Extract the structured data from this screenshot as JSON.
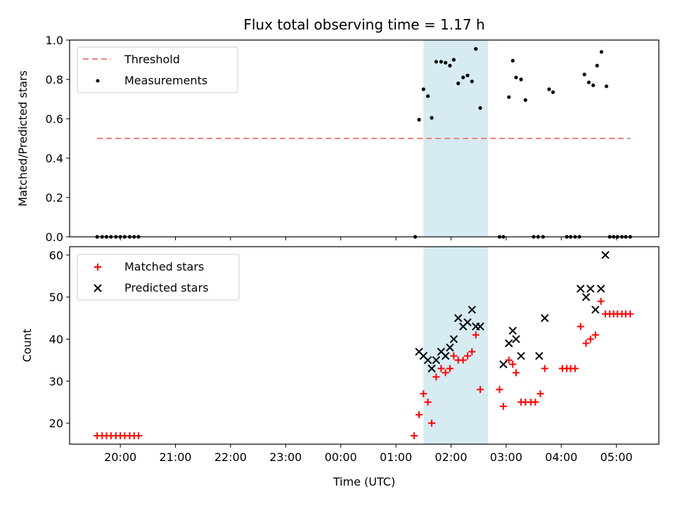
{
  "chart_data": [
    {
      "type": "scatter",
      "title": "Flux total observing time = 1.17 h",
      "xlabel": "",
      "ylabel": "Matched/Predicted stars",
      "ylim": [
        0,
        1.0
      ],
      "yticks": [
        "0.0",
        "0.2",
        "0.4",
        "0.6",
        "0.8",
        "1.0"
      ],
      "x_axis": "hours since 20:00 UTC",
      "xlim": [
        -0.92,
        9.77
      ],
      "highlight_span": [
        5.5,
        6.67
      ],
      "legend": {
        "placement": "upper-left",
        "entries": [
          "Threshold",
          "Measurements"
        ]
      },
      "threshold": {
        "name": "Threshold",
        "value": 0.5,
        "x_range": [
          -0.42,
          9.25
        ],
        "color": "#f08080"
      },
      "series": [
        {
          "name": "Measurements",
          "color": "#000000",
          "points": [
            [
              -0.42,
              0
            ],
            [
              -0.33,
              0
            ],
            [
              -0.25,
              0
            ],
            [
              -0.17,
              0
            ],
            [
              -0.08,
              0
            ],
            [
              0.0,
              0
            ],
            [
              0.08,
              0
            ],
            [
              0.17,
              0
            ],
            [
              0.25,
              0
            ],
            [
              0.33,
              0
            ],
            [
              5.35,
              0
            ],
            [
              5.42,
              0.595
            ],
            [
              5.5,
              0.75
            ],
            [
              5.58,
              0.715
            ],
            [
              5.65,
              0.605
            ],
            [
              5.73,
              0.89
            ],
            [
              5.82,
              0.89
            ],
            [
              5.9,
              0.885
            ],
            [
              5.98,
              0.87
            ],
            [
              6.05,
              0.9
            ],
            [
              6.13,
              0.78
            ],
            [
              6.22,
              0.81
            ],
            [
              6.3,
              0.82
            ],
            [
              6.38,
              0.79
            ],
            [
              6.45,
              0.955
            ],
            [
              6.53,
              0.655
            ],
            [
              6.88,
              0
            ],
            [
              6.95,
              0
            ],
            [
              7.05,
              0.71
            ],
            [
              7.12,
              0.895
            ],
            [
              7.18,
              0.81
            ],
            [
              7.27,
              0.8
            ],
            [
              7.35,
              0.695
            ],
            [
              7.5,
              0
            ],
            [
              7.58,
              0
            ],
            [
              7.67,
              0
            ],
            [
              7.78,
              0.75
            ],
            [
              7.85,
              0.735
            ],
            [
              8.1,
              0
            ],
            [
              8.17,
              0
            ],
            [
              8.25,
              0
            ],
            [
              8.33,
              0
            ],
            [
              8.42,
              0.825
            ],
            [
              8.5,
              0.785
            ],
            [
              8.58,
              0.77
            ],
            [
              8.65,
              0.87
            ],
            [
              8.73,
              0.94
            ],
            [
              8.82,
              0.765
            ],
            [
              8.88,
              0
            ],
            [
              8.95,
              0
            ],
            [
              9.02,
              0
            ],
            [
              9.1,
              0
            ],
            [
              9.17,
              0
            ],
            [
              9.25,
              0
            ]
          ]
        }
      ]
    },
    {
      "type": "scatter",
      "title": "",
      "xlabel": "Time (UTC)",
      "ylabel": "Count",
      "ylim": [
        15,
        62
      ],
      "yticks": [
        "20",
        "30",
        "40",
        "50",
        "60"
      ],
      "x_axis": "hours since 20:00 UTC",
      "xlim": [
        -0.92,
        9.77
      ],
      "xtick_labels": [
        "20:00",
        "21:00",
        "22:00",
        "23:00",
        "00:00",
        "01:00",
        "02:00",
        "03:00",
        "04:00",
        "05:00"
      ],
      "highlight_span": [
        5.5,
        6.67
      ],
      "legend": {
        "placement": "upper-left",
        "entries": [
          "Matched stars",
          "Predicted stars"
        ]
      },
      "series": [
        {
          "name": "Matched stars",
          "marker": "plus",
          "color": "#ff0000",
          "points": [
            [
              -0.42,
              17
            ],
            [
              -0.33,
              17
            ],
            [
              -0.25,
              17
            ],
            [
              -0.17,
              17
            ],
            [
              -0.08,
              17
            ],
            [
              0.0,
              17
            ],
            [
              0.08,
              17
            ],
            [
              0.17,
              17
            ],
            [
              0.25,
              17
            ],
            [
              0.33,
              17
            ],
            [
              5.33,
              17
            ],
            [
              5.42,
              22
            ],
            [
              5.5,
              27
            ],
            [
              5.58,
              25
            ],
            [
              5.65,
              20
            ],
            [
              5.73,
              31
            ],
            [
              5.82,
              33
            ],
            [
              5.9,
              32
            ],
            [
              5.98,
              33
            ],
            [
              6.05,
              36
            ],
            [
              6.13,
              35
            ],
            [
              6.22,
              35
            ],
            [
              6.3,
              36
            ],
            [
              6.38,
              37
            ],
            [
              6.45,
              41
            ],
            [
              6.53,
              28
            ],
            [
              6.88,
              28
            ],
            [
              6.95,
              24
            ],
            [
              7.05,
              35
            ],
            [
              7.12,
              34
            ],
            [
              7.18,
              32
            ],
            [
              7.27,
              25
            ],
            [
              7.35,
              25
            ],
            [
              7.45,
              25
            ],
            [
              7.53,
              25
            ],
            [
              7.62,
              27
            ],
            [
              7.7,
              33
            ],
            [
              8.02,
              33
            ],
            [
              8.1,
              33
            ],
            [
              8.17,
              33
            ],
            [
              8.25,
              33
            ],
            [
              8.35,
              43
            ],
            [
              8.45,
              39
            ],
            [
              8.53,
              40
            ],
            [
              8.62,
              41
            ],
            [
              8.72,
              49
            ],
            [
              8.8,
              46
            ],
            [
              8.88,
              46
            ],
            [
              8.95,
              46
            ],
            [
              9.02,
              46
            ],
            [
              9.1,
              46
            ],
            [
              9.17,
              46
            ],
            [
              9.25,
              46
            ]
          ]
        },
        {
          "name": "Predicted stars",
          "marker": "x",
          "color": "#000000",
          "points": [
            [
              5.42,
              37
            ],
            [
              5.5,
              36
            ],
            [
              5.58,
              35
            ],
            [
              5.65,
              33
            ],
            [
              5.73,
              35
            ],
            [
              5.82,
              37
            ],
            [
              5.9,
              36
            ],
            [
              5.98,
              38
            ],
            [
              6.05,
              40
            ],
            [
              6.13,
              45
            ],
            [
              6.22,
              43
            ],
            [
              6.3,
              44
            ],
            [
              6.38,
              47
            ],
            [
              6.45,
              43
            ],
            [
              6.53,
              43
            ],
            [
              6.95,
              34
            ],
            [
              7.05,
              39
            ],
            [
              7.12,
              42
            ],
            [
              7.18,
              40
            ],
            [
              7.27,
              36
            ],
            [
              7.6,
              36
            ],
            [
              7.7,
              45
            ],
            [
              8.35,
              52
            ],
            [
              8.45,
              50
            ],
            [
              8.53,
              52
            ],
            [
              8.62,
              47
            ],
            [
              8.72,
              52
            ],
            [
              8.8,
              60
            ]
          ]
        }
      ]
    }
  ]
}
